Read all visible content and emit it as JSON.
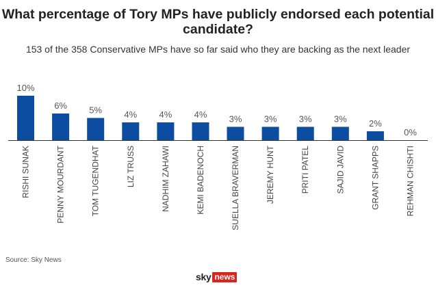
{
  "title": "What percentage of Tory MPs have publicly endorsed each potential candidate?",
  "subtitle": "153 of the 358 Conservative MPs have so far said who they are backing as the next leader",
  "source": "Source: Sky News",
  "logo": {
    "sky": "sky",
    "news": "news"
  },
  "colors": {
    "bar": "#0c4da2",
    "axis": "#333333"
  },
  "chart_data": {
    "type": "bar",
    "title": "What percentage of Tory MPs have publicly endorsed each potential candidate?",
    "xlabel": "",
    "ylabel": "",
    "ylim": [
      0,
      10
    ],
    "categories": [
      "RISHI SUNAK",
      "PENNY MOURDANT",
      "TOM TUGENDHAT",
      "LIZ TRUSS",
      "NADHIM ZAHAWI",
      "KEMI BADENOCH",
      "SUELLA BRAVERMAN",
      "JEREMY HUNT",
      "PRITI PATEL",
      "SAJID JAVID",
      "GRANT SHAPPS",
      "REHMAN CHISHTI"
    ],
    "values": [
      10,
      6,
      5,
      4,
      4,
      4,
      3,
      3,
      3,
      3,
      2,
      0
    ],
    "value_labels": [
      "10%",
      "6%",
      "5%",
      "4%",
      "4%",
      "4%",
      "3%",
      "3%",
      "3%",
      "3%",
      "2%",
      "0%"
    ]
  }
}
